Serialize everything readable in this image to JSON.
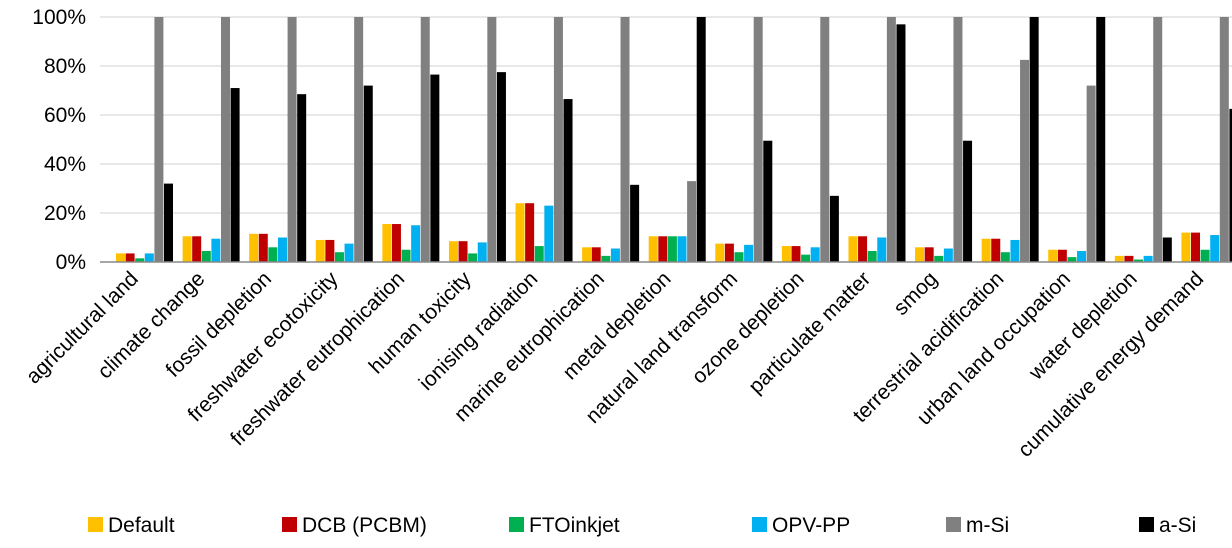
{
  "chart_data": {
    "type": "bar",
    "ylim": [
      0,
      100
    ],
    "yticks": [
      "0%",
      "20%",
      "40%",
      "60%",
      "80%",
      "100%"
    ],
    "grid": true,
    "legend_position": "bottom",
    "categories": [
      "agricultural land",
      "climate change",
      "fossil depletion",
      "freshwater ecotoxicity",
      "freshwater eutrophication",
      "human toxicity",
      "ionising radiation",
      "marine eutrophication",
      "metal depletion",
      "natural land transform",
      "ozone depletion",
      "particulate matter",
      "smog",
      "terrestrial acidification",
      "urban land occupation",
      "water depletion",
      "cumulative energy demand"
    ],
    "series": [
      {
        "name": "Default",
        "color": "#FFC000",
        "values": [
          3.5,
          10.5,
          11.5,
          9,
          15.5,
          8.5,
          24,
          6,
          10.5,
          7.5,
          6.5,
          10.5,
          6,
          9.5,
          5,
          2.5,
          12
        ]
      },
      {
        "name": "DCB (PCBM)",
        "color": "#C00000",
        "values": [
          3.5,
          10.5,
          11.5,
          9,
          15.5,
          8.5,
          24,
          6,
          10.5,
          7.5,
          6.5,
          10.5,
          6,
          9.5,
          5,
          2.5,
          12
        ]
      },
      {
        "name": "FTOinkjet",
        "color": "#00B050",
        "values": [
          1.5,
          4.5,
          6,
          4,
          5,
          3.5,
          6.5,
          2.5,
          10.5,
          4,
          3,
          4.5,
          2.5,
          4,
          2,
          1,
          5
        ]
      },
      {
        "name": "OPV-PP",
        "color": "#00B0F0",
        "values": [
          3.5,
          9.5,
          10,
          7.5,
          15,
          8,
          23,
          5.5,
          10.5,
          7,
          6,
          10,
          5.5,
          9,
          4.5,
          2.5,
          11
        ]
      },
      {
        "name": "m-Si",
        "color": "#808080",
        "values": [
          100,
          100,
          100,
          100,
          100,
          100,
          100,
          100,
          33,
          100,
          100,
          100,
          100,
          82.5,
          72,
          100,
          100
        ]
      },
      {
        "name": "a-Si",
        "color": "#000000",
        "values": [
          32,
          71,
          68.5,
          72,
          76.5,
          77.5,
          66.5,
          31.5,
          100,
          49.5,
          27,
          97,
          49.5,
          100,
          100,
          10,
          62.5
        ]
      }
    ]
  }
}
